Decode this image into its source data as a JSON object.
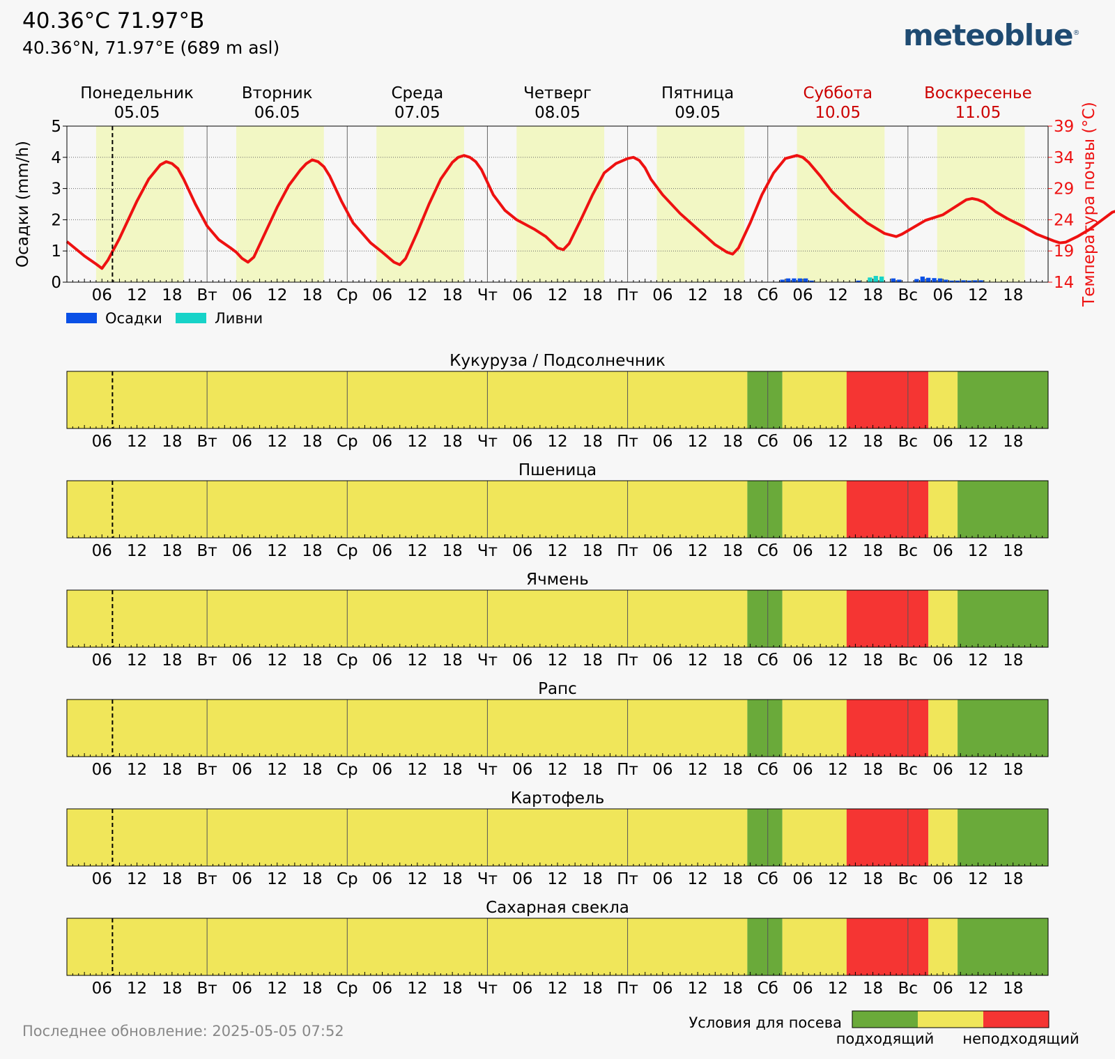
{
  "header": {
    "title": "40.36°C 71.97°В",
    "subtitle": "40.36°N, 71.97°E (689 m asl)",
    "logo": "meteoblue",
    "logo_mark": "®",
    "last_update": "Последнее обновление: 2025-05-05 07:52"
  },
  "colors": {
    "suitable": "#6aaa3a",
    "medium": "#f0e65a",
    "unsuitable": "#f53533",
    "daylight": "#f2f7c4",
    "precip": "#0a50e6",
    "shower": "#17d3c8",
    "temp_line": "#ee1111",
    "weekend": "#cc0000"
  },
  "x_ticks": {
    "days_short": [
      "",
      "Вт",
      "Ср",
      "Чт",
      "Пт",
      "Сб",
      "Вс"
    ],
    "hours": [
      "06",
      "12",
      "18"
    ]
  },
  "chart_data": [
    {
      "type": "line",
      "days": [
        {
          "name": "Понедельник",
          "date": "05.05",
          "weekend": false
        },
        {
          "name": "Вторник",
          "date": "06.05",
          "weekend": false
        },
        {
          "name": "Среда",
          "date": "07.05",
          "weekend": false
        },
        {
          "name": "Четверг",
          "date": "08.05",
          "weekend": false
        },
        {
          "name": "Пятница",
          "date": "09.05",
          "weekend": false
        },
        {
          "name": "Суббота",
          "date": "10.05",
          "weekend": true
        },
        {
          "name": "Воскресенье",
          "date": "11.05",
          "weekend": true
        }
      ],
      "ylabel_left": "Осадки (mm/h)",
      "ylabel_right": "Температура почвы (°C)",
      "ylim_left": [
        0,
        5
      ],
      "ylim_right": [
        14,
        39
      ],
      "yticks_left": [
        0,
        1,
        2,
        3,
        4,
        5
      ],
      "yticks_right": [
        14,
        19,
        24,
        29,
        34,
        39
      ],
      "now_hour": 7.8,
      "daylight_hours": [
        5,
        20
      ],
      "legend": [
        "Осадки",
        "Ливни"
      ],
      "series": [
        {
          "name": "Температура почвы (°C)",
          "axis": "right",
          "points": [
            [
              0,
              20.5
            ],
            [
              3,
              18.2
            ],
            [
              5,
              16.9
            ],
            [
              6,
              16.2
            ],
            [
              7,
              17.5
            ],
            [
              9,
              21
            ],
            [
              12,
              27
            ],
            [
              14,
              30.5
            ],
            [
              16,
              32.8
            ],
            [
              17,
              33.3
            ],
            [
              18,
              33
            ],
            [
              19,
              32.2
            ],
            [
              20,
              30.5
            ],
            [
              22,
              26.5
            ],
            [
              24,
              23
            ],
            [
              26,
              20.8
            ],
            [
              28,
              19.5
            ],
            [
              29,
              18.8
            ],
            [
              30,
              17.8
            ],
            [
              31,
              17.2
            ],
            [
              32,
              18
            ],
            [
              34,
              22
            ],
            [
              36,
              26
            ],
            [
              38,
              29.5
            ],
            [
              40,
              32
            ],
            [
              41,
              33
            ],
            [
              42,
              33.6
            ],
            [
              43,
              33.3
            ],
            [
              44,
              32.5
            ],
            [
              45,
              31
            ],
            [
              47,
              27
            ],
            [
              49,
              23.5
            ],
            [
              52,
              20.3
            ],
            [
              54,
              18.8
            ],
            [
              55,
              18
            ],
            [
              56,
              17.2
            ],
            [
              57,
              16.8
            ],
            [
              58,
              17.8
            ],
            [
              60,
              22
            ],
            [
              62,
              26.5
            ],
            [
              64,
              30.5
            ],
            [
              66,
              33.2
            ],
            [
              67,
              34
            ],
            [
              68,
              34.3
            ],
            [
              69,
              34
            ],
            [
              70,
              33.3
            ],
            [
              71,
              32
            ],
            [
              73,
              28
            ],
            [
              75,
              25.5
            ],
            [
              77,
              24
            ],
            [
              80,
              22.5
            ],
            [
              82,
              21.3
            ],
            [
              84,
              19.5
            ],
            [
              85,
              19.2
            ],
            [
              86,
              20.2
            ],
            [
              88,
              24
            ],
            [
              90,
              28
            ],
            [
              92,
              31.5
            ],
            [
              94,
              33
            ],
            [
              96,
              33.8
            ],
            [
              97,
              34
            ],
            [
              98,
              33.5
            ],
            [
              99,
              32.3
            ],
            [
              100,
              30.5
            ],
            [
              102,
              28
            ],
            [
              105,
              25
            ],
            [
              108,
              22.5
            ],
            [
              111,
              20
            ],
            [
              113,
              18.8
            ],
            [
              114,
              18.5
            ],
            [
              115,
              19.5
            ],
            [
              117,
              23.5
            ],
            [
              119,
              28
            ],
            [
              121,
              31.5
            ],
            [
              123,
              33.8
            ],
            [
              125,
              34.3
            ],
            [
              126,
              34
            ],
            [
              127,
              33.2
            ],
            [
              129,
              31
            ],
            [
              131,
              28.5
            ],
            [
              134,
              25.8
            ],
            [
              137,
              23.5
            ],
            [
              140,
              21.8
            ],
            [
              142,
              21.3
            ],
            [
              143,
              21.7
            ],
            [
              145,
              22.8
            ],
            [
              147,
              23.9
            ],
            [
              150,
              24.8
            ],
            [
              152,
              26
            ],
            [
              154,
              27.2
            ],
            [
              155,
              27.4
            ],
            [
              156,
              27.2
            ],
            [
              157,
              26.8
            ],
            [
              159,
              25.3
            ],
            [
              161,
              24.2
            ],
            [
              164,
              22.8
            ],
            [
              166,
              21.7
            ],
            [
              169,
              20.6
            ],
            [
              170,
              20.3
            ],
            [
              171,
              20.4
            ],
            [
              173,
              21.3
            ],
            [
              175,
              22.4
            ],
            [
              177,
              23.8
            ],
            [
              179,
              25.2
            ],
            [
              181,
              25.8
            ],
            [
              182,
              26
            ],
            [
              183,
              26.4
            ],
            [
              184,
              26.6
            ],
            [
              185,
              26.3
            ],
            [
              187,
              24.2
            ],
            [
              189,
              22.3
            ],
            [
              191,
              20.8
            ],
            [
              192,
              20
            ]
          ]
        },
        {
          "name": "Осадки",
          "axis": "left",
          "bars": [
            [
              122,
              0.08
            ],
            [
              123,
              0.12
            ],
            [
              124,
              0.12
            ],
            [
              125,
              0.12
            ],
            [
              126,
              0.12
            ],
            [
              127,
              0.05
            ],
            [
              135,
              0.05
            ],
            [
              138,
              0.1
            ],
            [
              141,
              0.12
            ],
            [
              142,
              0.08
            ],
            [
              145,
              0.1
            ],
            [
              146,
              0.18
            ],
            [
              147,
              0.14
            ],
            [
              148,
              0.13
            ],
            [
              149,
              0.12
            ],
            [
              150,
              0.08
            ],
            [
              151,
              0.05
            ],
            [
              152,
              0.05
            ],
            [
              153,
              0.06
            ],
            [
              154,
              0.05
            ],
            [
              155,
              0.06
            ],
            [
              156,
              0.06
            ]
          ]
        },
        {
          "name": "Ливни",
          "axis": "left",
          "bars": [
            [
              137,
              0.15
            ],
            [
              138,
              0.2
            ],
            [
              139,
              0.18
            ]
          ]
        }
      ]
    },
    {
      "type": "heatmap",
      "crops": [
        "Кукуруза / Подсолнечник",
        "Пшеница",
        "Ячмень",
        "Рапс",
        "Картофель",
        "Сахарная свекла"
      ],
      "segments": [
        {
          "from": 0,
          "to": 116.5,
          "class": "medium"
        },
        {
          "from": 116.5,
          "to": 122.5,
          "class": "suitable"
        },
        {
          "from": 122.5,
          "to": 133.5,
          "class": "medium"
        },
        {
          "from": 133.5,
          "to": 147.5,
          "class": "unsuitable"
        },
        {
          "from": 147.5,
          "to": 152.5,
          "class": "medium"
        },
        {
          "from": 152.5,
          "to": 168,
          "class": "suitable"
        }
      ]
    }
  ],
  "legend": {
    "title": "Условия для посева",
    "left_label": "подходящий",
    "right_label": "неподходящий"
  }
}
